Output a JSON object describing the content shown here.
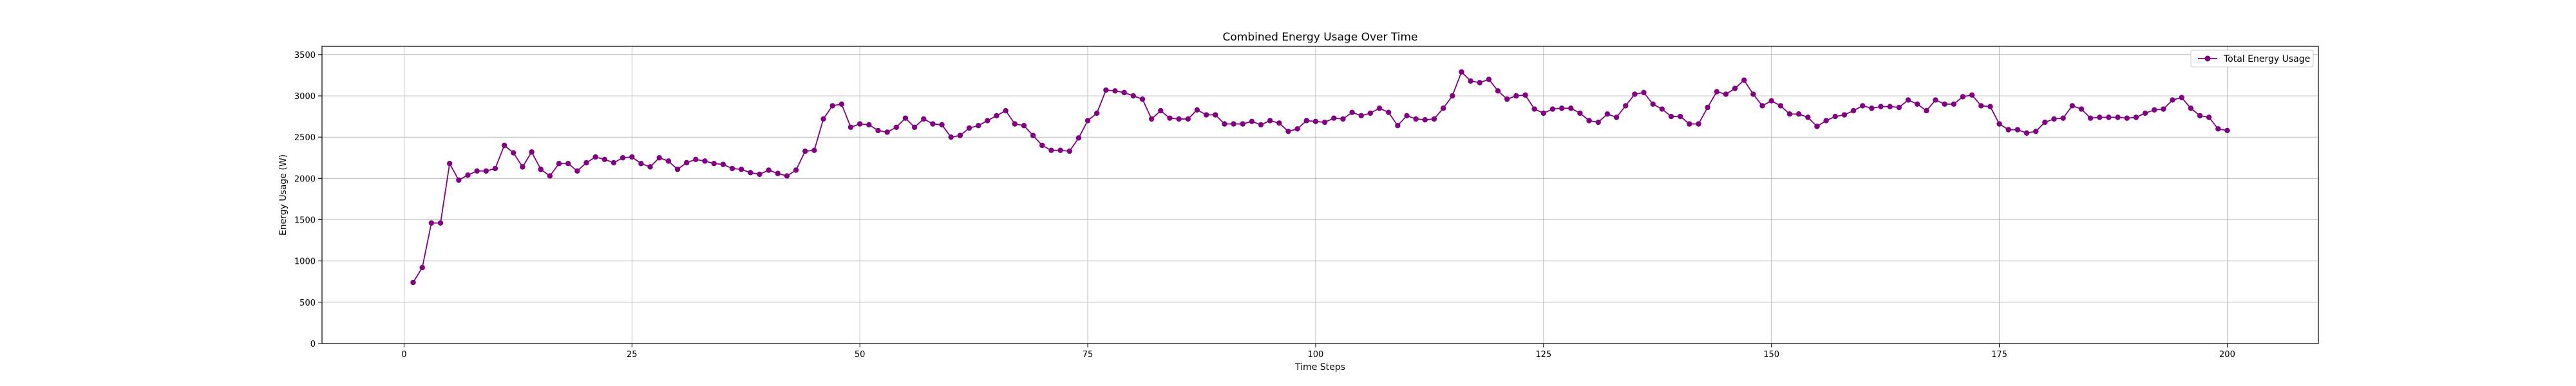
{
  "chart_data": {
    "type": "line",
    "title": "Combined Energy Usage Over Time",
    "xlabel": "Time Steps",
    "ylabel": "Energy Usage (W)",
    "xlim": [
      -9,
      210
    ],
    "ylim": [
      0,
      3600
    ],
    "xticks": [
      0,
      25,
      50,
      75,
      100,
      125,
      150,
      175,
      200
    ],
    "yticks": [
      0,
      500,
      1000,
      1500,
      2000,
      2500,
      3000,
      3500
    ],
    "grid": true,
    "legend_position": "top-right",
    "series": [
      {
        "name": "Total Energy Usage",
        "color": "#800080",
        "marker": "circle",
        "x": [
          1,
          2,
          3,
          4,
          5,
          6,
          7,
          8,
          9,
          10,
          11,
          12,
          13,
          14,
          15,
          16,
          17,
          18,
          19,
          20,
          21,
          22,
          23,
          24,
          25,
          26,
          27,
          28,
          29,
          30,
          31,
          32,
          33,
          34,
          35,
          36,
          37,
          38,
          39,
          40,
          41,
          42,
          43,
          44,
          45,
          46,
          47,
          48,
          49,
          50,
          51,
          52,
          53,
          54,
          55,
          56,
          57,
          58,
          59,
          60,
          61,
          62,
          63,
          64,
          65,
          66,
          67,
          68,
          69,
          70,
          71,
          72,
          73,
          74,
          75,
          76,
          77,
          78,
          79,
          80,
          81,
          82,
          83,
          84,
          85,
          86,
          87,
          88,
          89,
          90,
          91,
          92,
          93,
          94,
          95,
          96,
          97,
          98,
          99,
          100,
          101,
          102,
          103,
          104,
          105,
          106,
          107,
          108,
          109,
          110,
          111,
          112,
          113,
          114,
          115,
          116,
          117,
          118,
          119,
          120,
          121,
          122,
          123,
          124,
          125,
          126,
          127,
          128,
          129,
          130,
          131,
          132,
          133,
          134,
          135,
          136,
          137,
          138,
          139,
          140,
          141,
          142,
          143,
          144,
          145,
          146,
          147,
          148,
          149,
          150,
          151,
          152,
          153,
          154,
          155,
          156,
          157,
          158,
          159,
          160,
          161,
          162,
          163,
          164,
          165,
          166,
          167,
          168,
          169,
          170,
          171,
          172,
          173,
          174,
          175,
          176,
          177,
          178,
          179,
          180,
          181,
          182,
          183,
          184,
          185,
          186,
          187,
          188,
          189,
          190,
          191,
          192,
          193,
          194,
          195,
          196,
          197,
          198,
          199,
          200
        ],
        "values": [
          740,
          920,
          1460,
          1460,
          2180,
          1980,
          2040,
          2090,
          2090,
          2120,
          2400,
          2310,
          2140,
          2320,
          2110,
          2030,
          2180,
          2180,
          2090,
          2190,
          2260,
          2230,
          2190,
          2250,
          2260,
          2180,
          2140,
          2250,
          2210,
          2110,
          2190,
          2230,
          2210,
          2180,
          2170,
          2120,
          2110,
          2070,
          2050,
          2100,
          2060,
          2030,
          2100,
          2330,
          2340,
          2720,
          2880,
          2900,
          2620,
          2660,
          2650,
          2580,
          2560,
          2620,
          2730,
          2620,
          2720,
          2660,
          2650,
          2500,
          2520,
          2610,
          2640,
          2700,
          2760,
          2820,
          2660,
          2640,
          2520,
          2400,
          2340,
          2340,
          2330,
          2490,
          2700,
          2790,
          3070,
          3060,
          3040,
          3000,
          2960,
          2720,
          2820,
          2730,
          2720,
          2720,
          2830,
          2770,
          2770,
          2660,
          2660,
          2660,
          2690,
          2650,
          2700,
          2670,
          2570,
          2600,
          2700,
          2690,
          2680,
          2730,
          2720,
          2800,
          2760,
          2790,
          2850,
          2800,
          2640,
          2760,
          2720,
          2710,
          2720,
          2850,
          3000,
          3290,
          3180,
          3160,
          3200,
          3060,
          2960,
          3000,
          3010,
          2840,
          2790,
          2840,
          2850,
          2850,
          2790,
          2700,
          2680,
          2780,
          2740,
          2880,
          3020,
          3040,
          2900,
          2840,
          2750,
          2750,
          2660,
          2660,
          2860,
          3050,
          3020,
          3090,
          3190,
          3020,
          2880,
          2940,
          2880,
          2780,
          2780,
          2740,
          2630,
          2700,
          2750,
          2770,
          2820,
          2880,
          2850,
          2870,
          2870,
          2860,
          2950,
          2900,
          2820,
          2950,
          2900,
          2900,
          2990,
          3010,
          2880,
          2870,
          2660,
          2590,
          2590,
          2550,
          2570,
          2680,
          2720,
          2730,
          2880,
          2840,
          2730,
          2740,
          2740,
          2740,
          2730,
          2740,
          2790,
          2830,
          2840,
          2950,
          2980,
          2850,
          2760,
          2740,
          2600,
          2580
        ]
      }
    ]
  }
}
